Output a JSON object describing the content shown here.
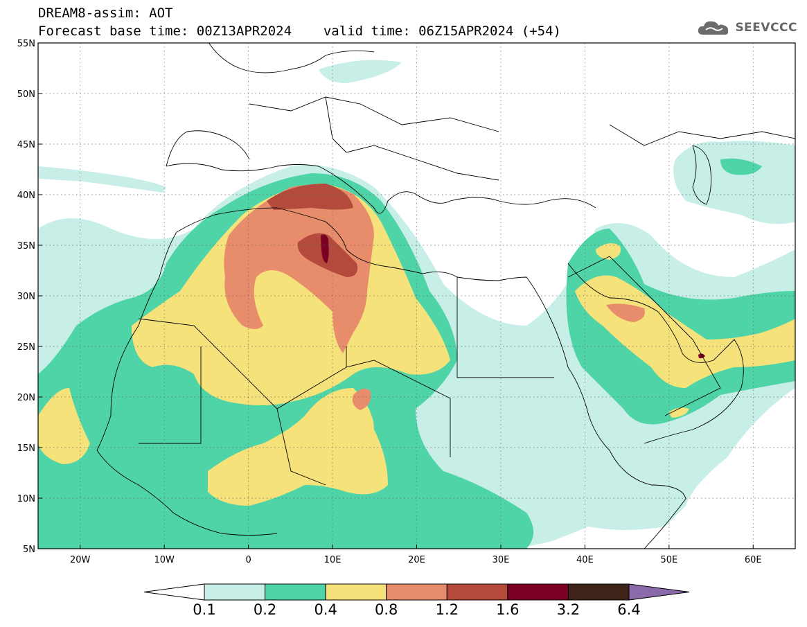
{
  "header": {
    "title_line1": "DREAM8-assim: AOT",
    "base_time": "Forecast base time: 00Z13APR2024",
    "valid_time": "valid time: 06Z15APR2024 (+54)"
  },
  "logo": {
    "text": "SEEVCCC",
    "icon": "cloud-icon"
  },
  "map": {
    "lat_labels": [
      "55N",
      "50N",
      "45N",
      "40N",
      "35N",
      "30N",
      "25N",
      "20N",
      "15N",
      "10N",
      "5N"
    ],
    "lon_labels": [
      "20W",
      "10W",
      "0",
      "10E",
      "20E",
      "30E",
      "40E",
      "50E",
      "60E"
    ],
    "colors": {
      "c01": "#c8eee8",
      "c02": "#4fd4a7",
      "c04": "#f5e27a",
      "c08": "#e88d6c",
      "c12": "#b34a3b",
      "c16": "#7a0024",
      "c32": "#3d2318",
      "c64": "#8a6aa8"
    }
  },
  "colorbar": {
    "labels": [
      "0.1",
      "0.2",
      "0.4",
      "0.8",
      "1.2",
      "1.6",
      "3.2",
      "6.4"
    ],
    "colors": [
      "#c8eee8",
      "#4fd4a7",
      "#f5e27a",
      "#e88d6c",
      "#b34a3b",
      "#7a0024",
      "#3d2318"
    ],
    "extend_high_color": "#8a6aa8"
  }
}
